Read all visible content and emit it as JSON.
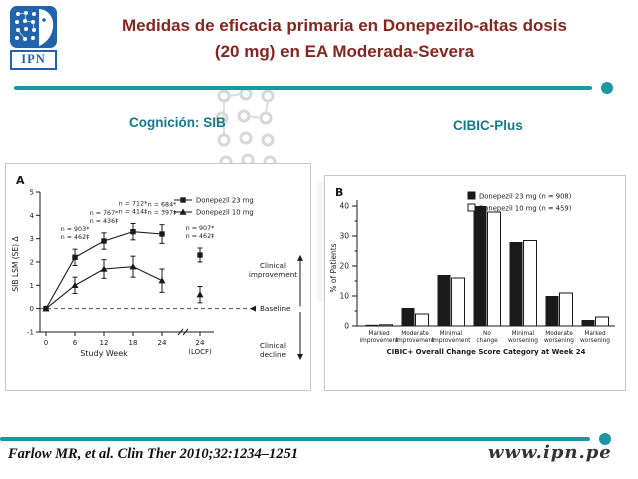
{
  "header": {
    "logo_text": "IPN",
    "title_line1": "Medidas de eficacia primaria en Donepezilo-altas dosis",
    "title_line2": "(20 mg) en EA Moderada-Severa"
  },
  "section_labels": {
    "left": "Cognición: SIB",
    "right": "CIBIC-Plus"
  },
  "footer": {
    "citation": "Farlow MR, et al. Clin Ther 2010;32:1234–1251",
    "site": "www.ipn.pe"
  },
  "colors": {
    "teal": "#1A96A5",
    "title_red": "#86261F",
    "logo_blue": "#2263AE",
    "chart_ink": "#1a1a1a"
  },
  "chart_data": [
    {
      "type": "line",
      "panel_label": "A",
      "xlabel": "Study Week",
      "ylabel": "SIB LSM (SE) Δ",
      "ylim": [
        -1,
        5
      ],
      "yticks": [
        -1,
        0,
        1,
        2,
        3,
        4,
        5
      ],
      "x_categories": [
        "0",
        "6",
        "12",
        "18",
        "24",
        "24 (LOCF)"
      ],
      "axis_break_before_last": true,
      "legend_position": "top-right",
      "grid": false,
      "series": [
        {
          "name": "Donepezil 23 mg",
          "marker": "square",
          "values": [
            0,
            2.2,
            2.9,
            3.3,
            3.2,
            2.3
          ],
          "errors": [
            0,
            0.35,
            0.35,
            0.35,
            0.4,
            0.3
          ]
        },
        {
          "name": "Donepezil 10 mg",
          "marker": "triangle",
          "values": [
            0,
            1.0,
            1.7,
            1.8,
            1.2,
            0.6
          ],
          "errors": [
            0,
            0.35,
            0.4,
            0.45,
            0.5,
            0.35
          ]
        }
      ],
      "annotations": [
        {
          "x": 1,
          "lines": [
            "n = 903*",
            "n = 462‡"
          ]
        },
        {
          "x": 2,
          "lines": [
            "n = 767*",
            "n = 436‡"
          ]
        },
        {
          "x": 3,
          "lines": [
            "n = 712*",
            "n = 414‡"
          ]
        },
        {
          "x": 4,
          "lines": [
            "n = 684*",
            "n = 397‡"
          ]
        },
        {
          "x": 5,
          "lines": [
            "n = 907*",
            "n = 462‡"
          ]
        }
      ],
      "right_labels": [
        "Clinical improvement",
        "Baseline",
        "Clinical decline"
      ]
    },
    {
      "type": "bar",
      "panel_label": "B",
      "xlabel": "CIBIC+ Overall Change Score Category at Week 24",
      "ylabel": "% of Patients",
      "ylim": [
        0,
        40
      ],
      "yticks": [
        0,
        10,
        20,
        30,
        40
      ],
      "legend_position": "top-right",
      "grid": false,
      "categories": [
        "Marked improvement",
        "Moderate improvement",
        "Minimal improvement",
        "No change",
        "Minimal worsening",
        "Moderate worsening",
        "Marked worsening"
      ],
      "series": [
        {
          "name": "Donepezil 23 mg (n = 908)",
          "fill": "black",
          "values": [
            0.4,
            6,
            17,
            40,
            28,
            10,
            2
          ]
        },
        {
          "name": "Donepezil 10 mg (n = 459)",
          "fill": "white",
          "values": [
            0.4,
            4,
            16,
            38,
            28.5,
            11,
            3
          ]
        }
      ]
    }
  ]
}
